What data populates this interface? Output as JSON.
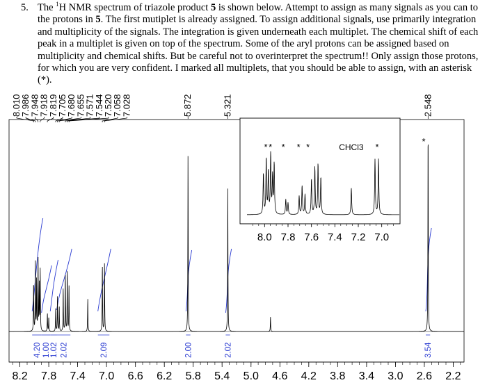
{
  "question": {
    "number": "5.",
    "parts": [
      {
        "t": "The "
      },
      {
        "t": "1",
        "sup": true
      },
      {
        "t": "H NMR spectrum of triazole product "
      },
      {
        "t": "5",
        "bold": true
      },
      {
        "t": " is shown below. Attempt to assign as many signals as you can to the protons in "
      },
      {
        "t": "5",
        "bold": true
      },
      {
        "t": ". The first mutiplet is already assigned. To assign additional signals, use primarily integration and multiplicity of the signals. The integration is given underneath each multiplet. The chemical shift of each peak in a multiplet is given on top of the spectrum. Some of the aryl protons can be assigned based on multiplicity and chemical shifts. But be careful not to overinterpret the spectrum!! Only assign those protons, for which you are very confident. I marked all multiplets, that you should be able to assign, with an asterisk (*)."
      }
    ]
  },
  "chart_data": {
    "type": "line",
    "title": "",
    "xlabel": "",
    "ylabel": "",
    "x_axis_reversed": true,
    "xlim": [
      8.35,
      2.05
    ],
    "x_ticks": [
      "8.2",
      "7.8",
      "7.4",
      "7.0",
      "6.6",
      "6.2",
      "5.8",
      "5.4",
      "5.0",
      "4.6",
      "4.2",
      "3.8",
      "3.4",
      "3.0",
      "2.6",
      "2.2"
    ],
    "peak_labels": [
      "8.010",
      "7.986",
      "7.948",
      "7.918",
      "7.819",
      "7.705",
      "7.680",
      "7.655",
      "7.571",
      "7.544",
      "7.520",
      "7.058",
      "7.028",
      "5.872",
      "5.321",
      "2.548"
    ],
    "integrations": [
      {
        "label": "4.20",
        "x_from": 8.03,
        "x_to": 7.9
      },
      {
        "label": "1.00",
        "x_from": 7.9,
        "x_to": 7.78
      },
      {
        "label": "1.02",
        "x_from": 7.78,
        "x_to": 7.69
      },
      {
        "label": "2.02",
        "x_from": 7.69,
        "x_to": 7.5
      },
      {
        "label": "2.09",
        "x_from": 7.12,
        "x_to": 6.96
      },
      {
        "label": "2.00",
        "x_from": 5.9,
        "x_to": 5.84
      },
      {
        "label": "2.02",
        "x_from": 5.35,
        "x_to": 5.29
      },
      {
        "label": "3.54",
        "x_from": 2.58,
        "x_to": 2.52
      }
    ],
    "peaks": [
      {
        "x": 8.01,
        "h": 0.24
      },
      {
        "x": 7.986,
        "h": 0.33
      },
      {
        "x": 7.968,
        "h": 0.25
      },
      {
        "x": 7.948,
        "h": 0.36
      },
      {
        "x": 7.932,
        "h": 0.22
      },
      {
        "x": 7.918,
        "h": 0.3
      },
      {
        "x": 7.819,
        "h": 0.09
      },
      {
        "x": 7.8,
        "h": 0.07
      },
      {
        "x": 7.705,
        "h": 0.11
      },
      {
        "x": 7.68,
        "h": 0.17
      },
      {
        "x": 7.655,
        "h": 0.12
      },
      {
        "x": 7.6,
        "h": 0.21
      },
      {
        "x": 7.571,
        "h": 0.28
      },
      {
        "x": 7.544,
        "h": 0.3
      },
      {
        "x": 7.52,
        "h": 0.22
      },
      {
        "x": 7.26,
        "h": 0.16
      },
      {
        "x": 7.058,
        "h": 0.33
      },
      {
        "x": 7.028,
        "h": 0.33
      },
      {
        "x": 5.872,
        "h": 0.86
      },
      {
        "x": 5.321,
        "h": 0.7
      },
      {
        "x": 4.73,
        "h": 0.07
      },
      {
        "x": 2.548,
        "h": 1.0
      }
    ],
    "inset": {
      "xlim": [
        8.15,
        6.85
      ],
      "x_ticks": [
        "8.0",
        "7.8",
        "7.6",
        "7.4",
        "7.2",
        "7.0"
      ],
      "annotations": [
        {
          "text": "*",
          "x": 7.99
        },
        {
          "text": "*",
          "x": 7.95
        },
        {
          "text": "*",
          "x": 7.84
        },
        {
          "text": "*",
          "x": 7.71
        },
        {
          "text": "*",
          "x": 7.63
        },
        {
          "text": "CHCl3",
          "x": 7.26
        },
        {
          "text": "*",
          "x": 7.04
        }
      ],
      "outside_annotation": {
        "text": "*",
        "x": 2.57
      }
    }
  }
}
